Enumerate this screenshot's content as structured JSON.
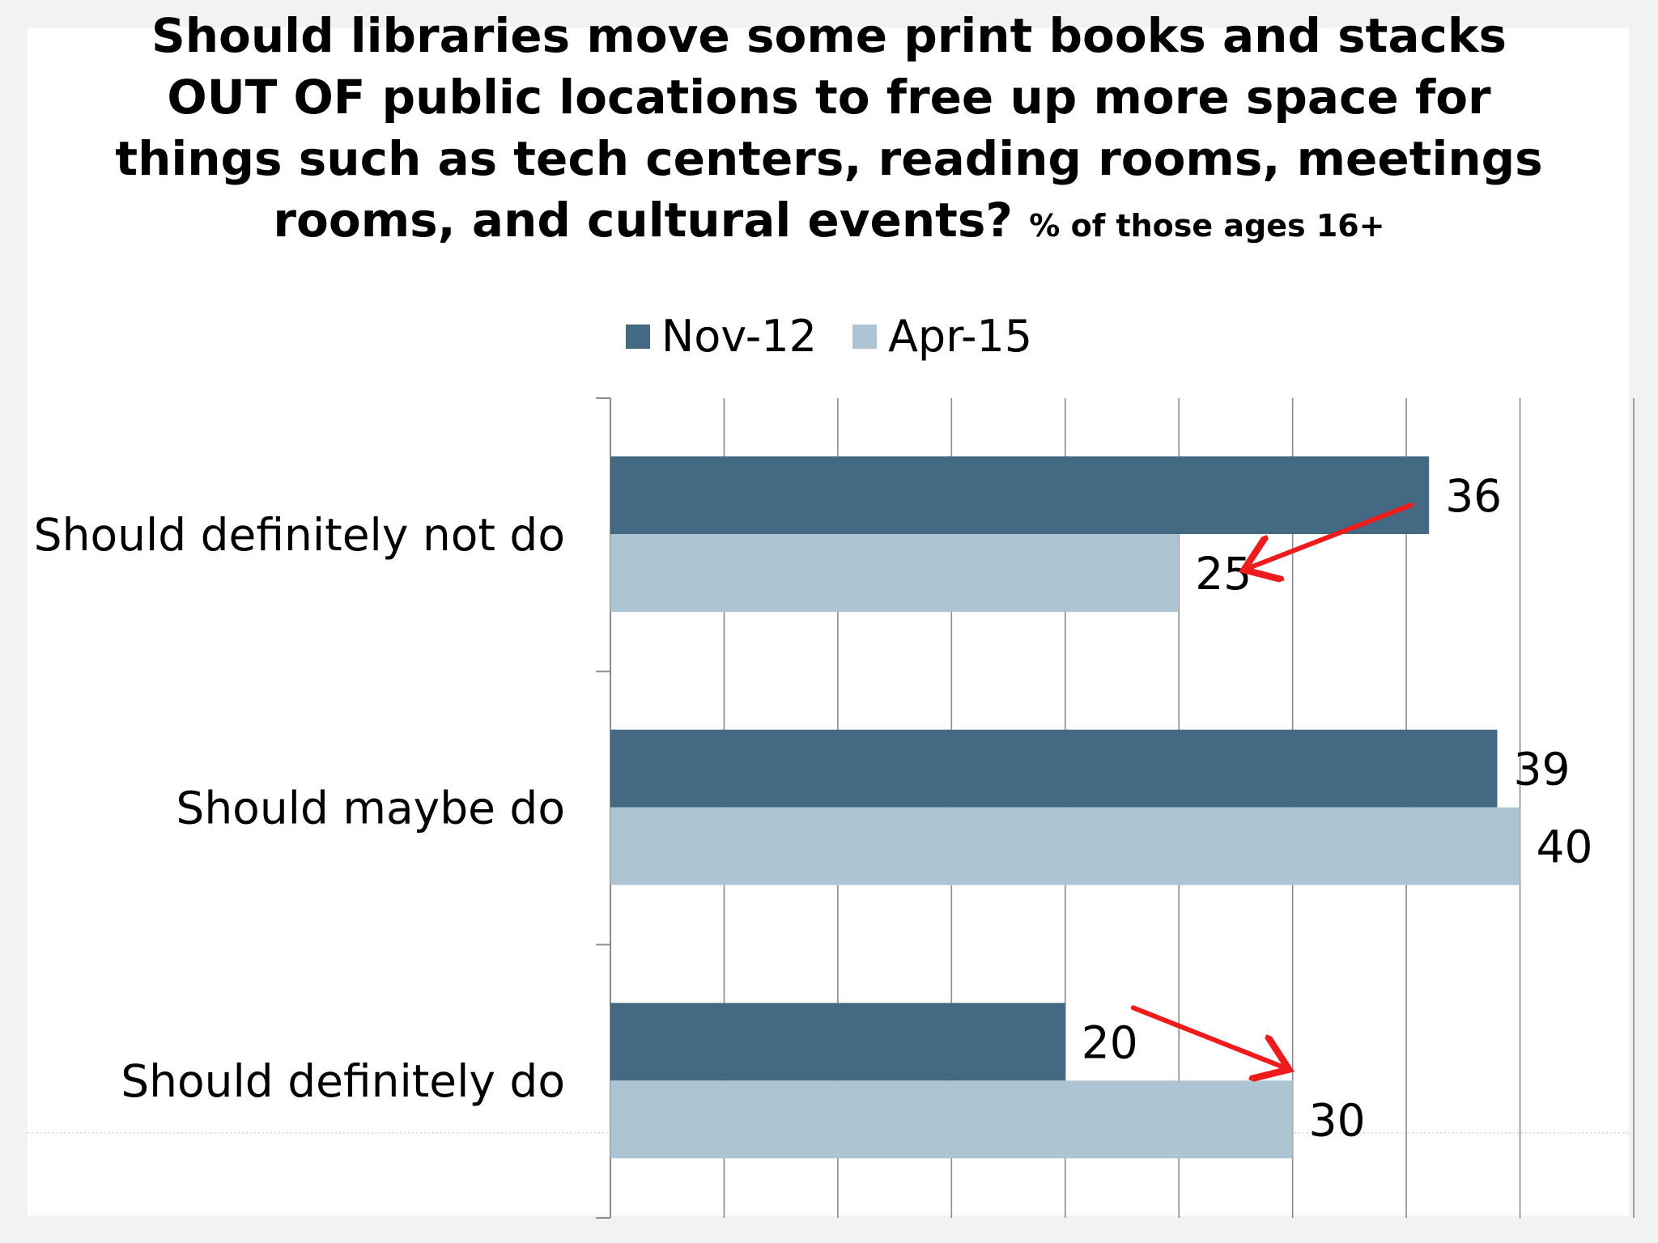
{
  "title": "Should libraries move some print books and stacks OUT OF public locations to free up more space for things such as tech centers, reading rooms, meetings rooms, and cultural events?",
  "title_lines": [
    "Should libraries move some print books and stacks",
    "OUT OF public locations to free up more space for",
    "things such as tech centers, reading rooms, meetings",
    "rooms, and cultural events?"
  ],
  "subtitle": "% of those ages 16+",
  "legend": [
    {
      "name": "Nov-12",
      "color": "#436a82"
    },
    {
      "name": "Apr-15",
      "color": "#adc4d2"
    }
  ],
  "chart_data": {
    "type": "bar",
    "orientation": "horizontal",
    "categories": [
      "Should definitely not do",
      "Should maybe do",
      "Should definitely do"
    ],
    "series": [
      {
        "name": "Nov-12",
        "values": [
          36,
          39,
          20
        ],
        "color": "#436a82"
      },
      {
        "name": "Apr-15",
        "values": [
          25,
          40,
          30
        ],
        "color": "#adc4d2"
      }
    ],
    "xlim": [
      0,
      45
    ],
    "grid_step": 5,
    "grid": true,
    "legend_position": "top-center",
    "annotations": [
      {
        "type": "arrow",
        "color": "#ee1c1c",
        "category": "Should definitely not do",
        "from_series": "Nov-12",
        "to_series": "Apr-15"
      },
      {
        "type": "arrow",
        "color": "#ee1c1c",
        "category": "Should definitely do",
        "from_series": "Nov-12",
        "to_series": "Apr-15"
      }
    ]
  }
}
